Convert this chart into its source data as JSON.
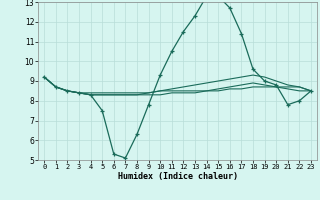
{
  "xlabel": "Humidex (Indice chaleur)",
  "ylabel": "",
  "background_color": "#d6f5f0",
  "line_color": "#1a6b5a",
  "grid_color": "#b8ddd8",
  "xlim": [
    -0.5,
    23.5
  ],
  "ylim": [
    5,
    13
  ],
  "xticks": [
    0,
    1,
    2,
    3,
    4,
    5,
    6,
    7,
    8,
    9,
    10,
    11,
    12,
    13,
    14,
    15,
    16,
    17,
    18,
    19,
    20,
    21,
    22,
    23
  ],
  "yticks": [
    5,
    6,
    7,
    8,
    9,
    10,
    11,
    12,
    13
  ],
  "series": [
    {
      "x": [
        0,
        1,
        2,
        3,
        4,
        5,
        6,
        7,
        8,
        9,
        10,
        11,
        12,
        13,
        14,
        15,
        16,
        17,
        18,
        19,
        20,
        21,
        22,
        23
      ],
      "y": [
        9.2,
        8.7,
        8.5,
        8.4,
        8.3,
        7.5,
        5.3,
        5.1,
        6.3,
        7.8,
        9.3,
        10.5,
        11.5,
        12.3,
        13.3,
        13.3,
        12.7,
        11.4,
        9.6,
        9.0,
        8.8,
        7.8,
        8.0,
        8.5
      ],
      "has_markers": true
    },
    {
      "x": [
        0,
        1,
        2,
        3,
        4,
        5,
        6,
        7,
        8,
        9,
        10,
        11,
        12,
        13,
        14,
        15,
        16,
        17,
        18,
        19,
        20,
        21,
        22,
        23
      ],
      "y": [
        9.2,
        8.7,
        8.5,
        8.4,
        8.4,
        8.4,
        8.4,
        8.4,
        8.4,
        8.4,
        8.5,
        8.5,
        8.5,
        8.5,
        8.5,
        8.5,
        8.6,
        8.6,
        8.7,
        8.7,
        8.7,
        8.7,
        8.7,
        8.5
      ],
      "has_markers": false
    },
    {
      "x": [
        0,
        1,
        2,
        3,
        4,
        5,
        6,
        7,
        8,
        9,
        10,
        11,
        12,
        13,
        14,
        15,
        16,
        17,
        18,
        19,
        20,
        21,
        22,
        23
      ],
      "y": [
        9.2,
        8.7,
        8.5,
        8.4,
        8.3,
        8.3,
        8.3,
        8.3,
        8.3,
        8.4,
        8.5,
        8.6,
        8.7,
        8.8,
        8.9,
        9.0,
        9.1,
        9.2,
        9.3,
        9.2,
        9.0,
        8.8,
        8.7,
        8.5
      ],
      "has_markers": false
    },
    {
      "x": [
        0,
        1,
        2,
        3,
        4,
        5,
        6,
        7,
        8,
        9,
        10,
        11,
        12,
        13,
        14,
        15,
        16,
        17,
        18,
        19,
        20,
        21,
        22,
        23
      ],
      "y": [
        9.2,
        8.7,
        8.5,
        8.4,
        8.3,
        8.3,
        8.3,
        8.3,
        8.3,
        8.3,
        8.3,
        8.4,
        8.4,
        8.4,
        8.5,
        8.6,
        8.7,
        8.8,
        8.9,
        8.8,
        8.7,
        8.6,
        8.5,
        8.5
      ],
      "has_markers": false
    }
  ]
}
